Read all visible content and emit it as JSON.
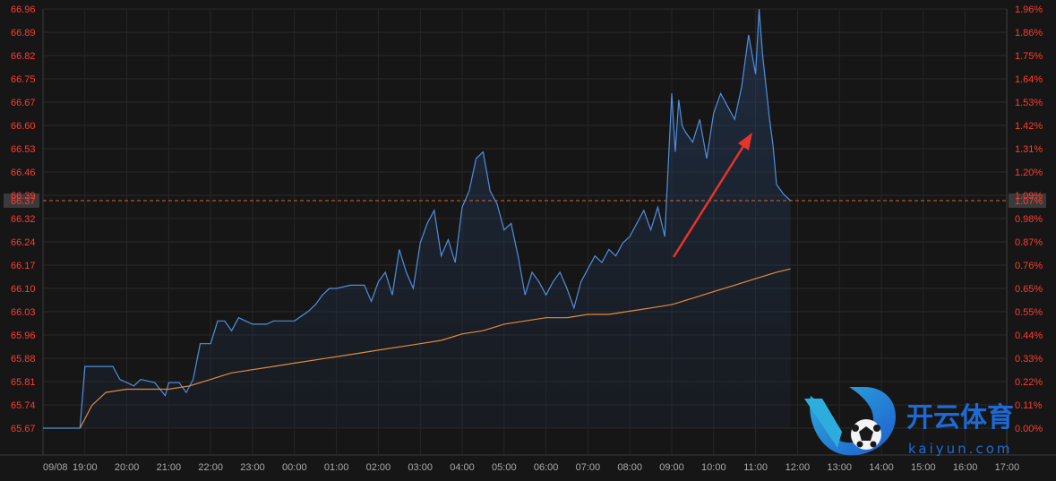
{
  "chart_data": {
    "type": "line",
    "title": "",
    "xlabel": "",
    "ylabel": "",
    "x_tick_labels": [
      "09/08",
      "19:00",
      "20:00",
      "21:00",
      "22:00",
      "23:00",
      "00:00",
      "01:00",
      "02:00",
      "03:00",
      "04:00",
      "05:00",
      "06:00",
      "07:00",
      "08:00",
      "09:00",
      "10:00",
      "11:00",
      "12:00",
      "13:00",
      "14:00",
      "15:00",
      "16:00",
      "17:00"
    ],
    "y_left_ticks": [
      "66.96",
      "66.89",
      "66.82",
      "66.75",
      "66.67",
      "66.60",
      "66.53",
      "66.46",
      "66.39",
      "66.32",
      "66.24",
      "66.17",
      "66.10",
      "66.03",
      "65.96",
      "65.88",
      "65.81",
      "65.74",
      "65.67"
    ],
    "y_right_ticks": [
      "1.96%",
      "1.86%",
      "1.75%",
      "1.64%",
      "1.53%",
      "1.42%",
      "1.31%",
      "1.20%",
      "1.09%",
      "0.98%",
      "0.87%",
      "0.76%",
      "0.65%",
      "0.55%",
      "0.44%",
      "0.33%",
      "0.22%",
      "0.11%",
      "0.00%"
    ],
    "ylim": [
      65.67,
      66.96
    ],
    "current_value": "66.37",
    "current_change": "1.07%",
    "grid": true,
    "series": [
      {
        "color": "#4f8fe0",
        "x": [
          "18:00",
          "18:53",
          "19:00",
          "19:20",
          "19:40",
          "19:50",
          "20:10",
          "20:20",
          "20:40",
          "20:55",
          "21:00",
          "21:15",
          "21:25",
          "21:35",
          "21:45",
          "22:00",
          "22:10",
          "22:20",
          "22:30",
          "22:40",
          "22:50",
          "23:00",
          "23:20",
          "23:30",
          "23:45",
          "00:00",
          "00:20",
          "00:30",
          "00:40",
          "00:50",
          "01:00",
          "01:20",
          "01:40",
          "01:50",
          "02:00",
          "02:10",
          "02:20",
          "02:30",
          "02:40",
          "02:50",
          "03:00",
          "03:10",
          "03:20",
          "03:30",
          "03:40",
          "03:50",
          "04:00",
          "04:10",
          "04:20",
          "04:30",
          "04:40",
          "04:50",
          "05:00",
          "05:10",
          "05:20",
          "05:30",
          "05:40",
          "05:50",
          "06:00",
          "06:10",
          "06:20",
          "06:30",
          "06:40",
          "06:50",
          "07:00",
          "07:10",
          "07:20",
          "07:30",
          "07:40",
          "07:50",
          "08:00",
          "08:10",
          "08:20",
          "08:30",
          "08:40",
          "08:50",
          "09:00",
          "09:05",
          "09:10",
          "09:15",
          "09:20",
          "09:30",
          "09:40",
          "09:50",
          "10:00",
          "10:10",
          "10:20",
          "10:30",
          "10:40",
          "10:50",
          "11:00",
          "11:05",
          "11:10",
          "11:15",
          "11:20",
          "11:25",
          "11:30",
          "11:40",
          "11:50"
        ],
        "y": [
          65.67,
          65.67,
          65.86,
          65.86,
          65.86,
          65.82,
          65.8,
          65.82,
          65.81,
          65.77,
          65.81,
          65.81,
          65.78,
          65.82,
          65.93,
          65.93,
          66.0,
          66.0,
          65.97,
          66.01,
          66.0,
          65.99,
          65.99,
          66.0,
          66.0,
          66.0,
          66.03,
          66.05,
          66.08,
          66.1,
          66.1,
          66.11,
          66.11,
          66.06,
          66.12,
          66.15,
          66.08,
          66.22,
          66.15,
          66.1,
          66.24,
          66.3,
          66.34,
          66.2,
          66.25,
          66.18,
          66.35,
          66.4,
          66.5,
          66.52,
          66.4,
          66.36,
          66.28,
          66.3,
          66.2,
          66.08,
          66.15,
          66.12,
          66.08,
          66.12,
          66.15,
          66.1,
          66.04,
          66.12,
          66.16,
          66.2,
          66.18,
          66.22,
          66.2,
          66.24,
          66.26,
          66.3,
          66.34,
          66.28,
          66.35,
          66.26,
          66.7,
          66.52,
          66.68,
          66.6,
          66.58,
          66.55,
          66.62,
          66.5,
          66.64,
          66.7,
          66.66,
          66.62,
          66.72,
          66.88,
          66.76,
          66.96,
          66.82,
          66.72,
          66.62,
          66.54,
          66.42,
          66.39,
          66.37
        ]
      },
      {
        "color": "#e58a3a",
        "x": [
          "18:53",
          "19:10",
          "19:30",
          "20:00",
          "20:30",
          "21:00",
          "21:30",
          "22:00",
          "22:30",
          "23:00",
          "23:30",
          "00:00",
          "00:30",
          "01:00",
          "01:30",
          "02:00",
          "02:30",
          "03:00",
          "03:30",
          "04:00",
          "04:30",
          "05:00",
          "05:30",
          "06:00",
          "06:30",
          "07:00",
          "07:30",
          "08:00",
          "08:30",
          "09:00",
          "09:30",
          "10:00",
          "10:30",
          "11:00",
          "11:30",
          "11:50"
        ],
        "y": [
          65.67,
          65.74,
          65.78,
          65.79,
          65.79,
          65.79,
          65.8,
          65.82,
          65.84,
          65.85,
          65.86,
          65.87,
          65.88,
          65.89,
          65.9,
          65.91,
          65.92,
          65.93,
          65.94,
          65.96,
          65.97,
          65.99,
          66.0,
          66.01,
          66.01,
          66.02,
          66.02,
          66.03,
          66.04,
          66.05,
          66.07,
          66.09,
          66.11,
          66.13,
          66.15,
          66.16
        ]
      }
    ]
  },
  "watermark": {
    "brand_cn": "开云体育",
    "brand_url": "kaiyun.com",
    "logo_text": "K",
    "logo_colors": [
      "#2fb6e8",
      "#1e5fd8"
    ]
  }
}
